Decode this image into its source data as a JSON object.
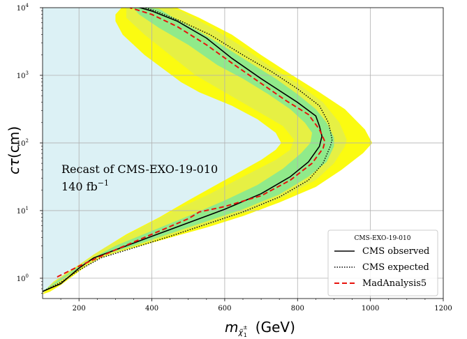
{
  "chart_data": {
    "type": "line",
    "xlim": [
      100,
      1200
    ],
    "ylim_log10": [
      -0.3,
      4
    ],
    "y_scale": "log",
    "grid": true,
    "x_ticks": [
      200,
      400,
      600,
      800,
      1000,
      1200
    ],
    "x_tick_labels": [
      "200",
      "400",
      "600",
      "800",
      "1000",
      "1200"
    ],
    "y_ticks_log10": [
      0,
      1,
      2,
      3,
      4
    ],
    "xlabel": {
      "base": "m",
      "sub": "χ̃",
      "subsup": "±",
      "subsub": "1",
      "unit": "(GeV)"
    },
    "ylabel": {
      "sym": "cτ",
      "unit": "(cm)"
    },
    "annotation": [
      "Recast of CMS-EXO-19-010",
      "140 fb"
    ],
    "annotation_sup": "−1",
    "legend": {
      "title": "CMS-EXO-19-010",
      "position": "lower right",
      "entries": [
        "CMS observed",
        "CMS expected",
        "MadAnalysis5"
      ]
    },
    "colors": {
      "excluded_region": "#dcf1f5",
      "band_2sigma": "#fbfb11",
      "band_2sigma_inner": "#e6f044",
      "band_1sigma": "#90ea8a",
      "observed": "#000000",
      "expected": "#000000",
      "madanalysis": "#e8120c"
    },
    "series": [
      {
        "name": "CMS observed",
        "style": "solid",
        "points": [
          [
            98,
            -0.2
          ],
          [
            150,
            -0.08
          ],
          [
            200,
            0.15
          ],
          [
            240,
            0.3
          ],
          [
            300,
            0.42
          ],
          [
            400,
            0.62
          ],
          [
            500,
            0.82
          ],
          [
            550,
            0.92
          ],
          [
            600,
            1.02
          ],
          [
            700,
            1.25
          ],
          [
            780,
            1.5
          ],
          [
            830,
            1.72
          ],
          [
            860,
            1.95
          ],
          [
            867,
            2.1
          ],
          [
            860,
            2.25
          ],
          [
            850,
            2.4
          ],
          [
            800,
            2.6
          ],
          [
            700,
            2.95
          ],
          [
            620,
            3.25
          ],
          [
            550,
            3.55
          ],
          [
            470,
            3.8
          ],
          [
            400,
            3.95
          ],
          [
            355,
            4.02
          ]
        ]
      },
      {
        "name": "CMS expected",
        "style": "dotted",
        "points": [
          [
            98,
            -0.2
          ],
          [
            150,
            -0.06
          ],
          [
            200,
            0.12
          ],
          [
            260,
            0.3
          ],
          [
            350,
            0.45
          ],
          [
            450,
            0.62
          ],
          [
            550,
            0.8
          ],
          [
            650,
            0.98
          ],
          [
            750,
            1.2
          ],
          [
            830,
            1.45
          ],
          [
            870,
            1.7
          ],
          [
            890,
            1.95
          ],
          [
            895,
            2.05
          ],
          [
            885,
            2.3
          ],
          [
            860,
            2.55
          ],
          [
            800,
            2.8
          ],
          [
            730,
            3.05
          ],
          [
            650,
            3.3
          ],
          [
            560,
            3.6
          ],
          [
            480,
            3.8
          ],
          [
            410,
            3.95
          ],
          [
            370,
            4.02
          ]
        ]
      },
      {
        "name": "MadAnalysis5",
        "style": "dashed",
        "points": [
          [
            140,
            0.02
          ],
          [
            200,
            0.18
          ],
          [
            300,
            0.42
          ],
          [
            400,
            0.65
          ],
          [
            500,
            0.88
          ],
          [
            530,
            0.98
          ],
          [
            600,
            1.06
          ],
          [
            700,
            1.22
          ],
          [
            780,
            1.45
          ],
          [
            840,
            1.7
          ],
          [
            870,
            1.92
          ],
          [
            875,
            2.02
          ],
          [
            860,
            2.2
          ],
          [
            830,
            2.42
          ],
          [
            770,
            2.62
          ],
          [
            700,
            2.88
          ],
          [
            620,
            3.18
          ],
          [
            550,
            3.45
          ],
          [
            470,
            3.72
          ],
          [
            400,
            3.9
          ],
          [
            340,
            4.0
          ]
        ]
      }
    ],
    "bands": {
      "outer_2sigma": [
        [
          98,
          -0.24
        ],
        [
          120,
          -0.2
        ],
        [
          150,
          -0.1
        ],
        [
          200,
          0.1
        ],
        [
          250,
          0.3
        ],
        [
          350,
          0.45
        ],
        [
          450,
          0.6
        ],
        [
          550,
          0.75
        ],
        [
          650,
          0.92
        ],
        [
          750,
          1.12
        ],
        [
          850,
          1.35
        ],
        [
          920,
          1.6
        ],
        [
          980,
          1.85
        ],
        [
          1005,
          2.0
        ],
        [
          985,
          2.2
        ],
        [
          930,
          2.5
        ],
        [
          860,
          2.75
        ],
        [
          780,
          3.02
        ],
        [
          700,
          3.3
        ],
        [
          620,
          3.6
        ],
        [
          530,
          3.85
        ],
        [
          460,
          4.02
        ],
        [
          320,
          4.02
        ],
        [
          300,
          3.9
        ],
        [
          300,
          3.8
        ],
        [
          320,
          3.6
        ],
        [
          380,
          3.3
        ],
        [
          430,
          3.1
        ],
        [
          480,
          2.9
        ],
        [
          530,
          2.75
        ],
        [
          620,
          2.55
        ],
        [
          690,
          2.35
        ],
        [
          740,
          2.15
        ],
        [
          755,
          2.0
        ],
        [
          740,
          1.9
        ],
        [
          700,
          1.75
        ],
        [
          600,
          1.45
        ],
        [
          500,
          1.15
        ],
        [
          420,
          0.9
        ],
        [
          330,
          0.65
        ],
        [
          240,
          0.35
        ],
        [
          160,
          0.05
        ],
        [
          110,
          -0.18
        ],
        [
          98,
          -0.24
        ]
      ],
      "inner_2sigma": [
        [
          98,
          -0.22
        ],
        [
          140,
          -0.1
        ],
        [
          200,
          0.12
        ],
        [
          260,
          0.3
        ],
        [
          360,
          0.48
        ],
        [
          460,
          0.64
        ],
        [
          560,
          0.8
        ],
        [
          660,
          0.98
        ],
        [
          760,
          1.2
        ],
        [
          850,
          1.45
        ],
        [
          900,
          1.7
        ],
        [
          930,
          1.95
        ],
        [
          935,
          2.05
        ],
        [
          915,
          2.3
        ],
        [
          870,
          2.6
        ],
        [
          800,
          2.88
        ],
        [
          720,
          3.15
        ],
        [
          640,
          3.45
        ],
        [
          560,
          3.72
        ],
        [
          480,
          3.95
        ],
        [
          440,
          4.02
        ],
        [
          330,
          4.02
        ],
        [
          330,
          3.85
        ],
        [
          380,
          3.6
        ],
        [
          450,
          3.3
        ],
        [
          520,
          3.0
        ],
        [
          600,
          2.75
        ],
        [
          680,
          2.5
        ],
        [
          760,
          2.25
        ],
        [
          790,
          2.05
        ],
        [
          780,
          1.9
        ],
        [
          740,
          1.75
        ],
        [
          650,
          1.5
        ],
        [
          560,
          1.25
        ],
        [
          460,
          1.0
        ],
        [
          360,
          0.72
        ],
        [
          270,
          0.45
        ],
        [
          200,
          0.2
        ],
        [
          130,
          -0.05
        ],
        [
          98,
          -0.22
        ]
      ],
      "band_1sigma": [
        [
          98,
          -0.2
        ],
        [
          140,
          -0.07
        ],
        [
          200,
          0.15
        ],
        [
          250,
          0.32
        ],
        [
          350,
          0.48
        ],
        [
          450,
          0.66
        ],
        [
          550,
          0.84
        ],
        [
          650,
          1.02
        ],
        [
          750,
          1.24
        ],
        [
          830,
          1.5
        ],
        [
          880,
          1.72
        ],
        [
          900,
          1.95
        ],
        [
          900,
          2.08
        ],
        [
          880,
          2.3
        ],
        [
          850,
          2.5
        ],
        [
          800,
          2.72
        ],
        [
          740,
          2.95
        ],
        [
          680,
          3.15
        ],
        [
          600,
          3.42
        ],
        [
          530,
          3.65
        ],
        [
          460,
          3.85
        ],
        [
          420,
          3.98
        ],
        [
          360,
          4.02
        ],
        [
          345,
          4.02
        ],
        [
          365,
          3.9
        ],
        [
          420,
          3.7
        ],
        [
          500,
          3.45
        ],
        [
          580,
          3.15
        ],
        [
          650,
          2.95
        ],
        [
          720,
          2.72
        ],
        [
          780,
          2.5
        ],
        [
          820,
          2.3
        ],
        [
          840,
          2.15
        ],
        [
          835,
          2.0
        ],
        [
          810,
          1.85
        ],
        [
          760,
          1.62
        ],
        [
          690,
          1.38
        ],
        [
          600,
          1.15
        ],
        [
          500,
          0.92
        ],
        [
          400,
          0.7
        ],
        [
          300,
          0.48
        ],
        [
          220,
          0.25
        ],
        [
          150,
          0.0
        ],
        [
          98,
          -0.2
        ]
      ]
    }
  }
}
